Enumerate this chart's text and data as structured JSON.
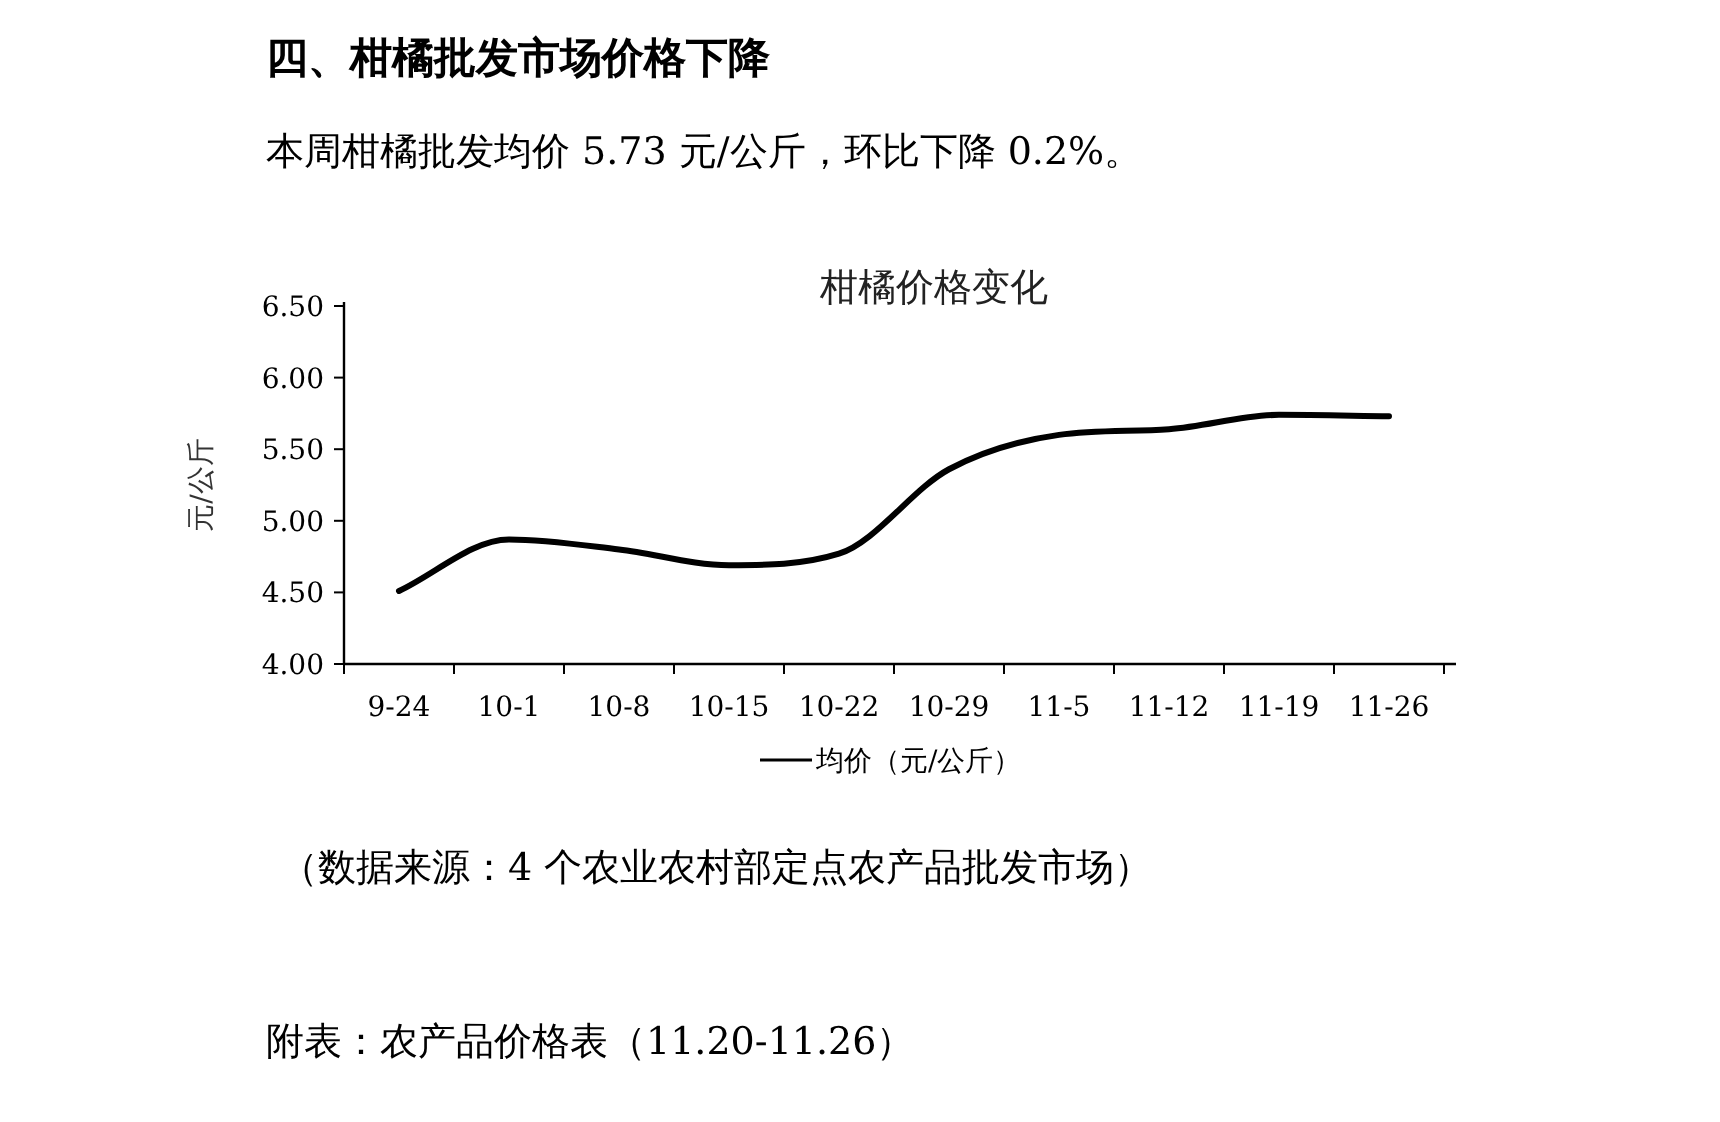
{
  "chart_data": {
    "type": "line",
    "title": "柑橘价格变化",
    "ylabel": "元/公斤",
    "annotations": [
      "四、柑橘批发市场价格下降",
      "本周柑橘批发均价 5.73 元/公斤，环比下降 0.2%。",
      "（数据来源：4 个农业农村部定点农产品批发市场）",
      "附表：农产品价格表（11.20-11.26）"
    ],
    "categories": [
      "9-24",
      "10-1",
      "10-8",
      "10-15",
      "10-22",
      "10-29",
      "11-5",
      "11-12",
      "11-19",
      "11-26"
    ],
    "series": [
      {
        "name": "均价（元/公斤）",
        "color": "#000000",
        "values": [
          4.51,
          4.87,
          4.8,
          4.69,
          4.77,
          5.36,
          5.6,
          5.64,
          5.74,
          5.73
        ]
      }
    ],
    "ylim": [
      4.0,
      6.5
    ],
    "yticks": [
      {
        "value": 4.0,
        "label": "4.00"
      },
      {
        "value": 4.5,
        "label": "4.50"
      },
      {
        "value": 5.0,
        "label": "5.00"
      },
      {
        "value": 5.5,
        "label": "5.50"
      },
      {
        "value": 6.0,
        "label": "6.00"
      },
      {
        "value": 6.5,
        "label": "6.50"
      }
    ],
    "grid": false,
    "legend": "bottom",
    "marker": "none",
    "line_style": "solid"
  }
}
